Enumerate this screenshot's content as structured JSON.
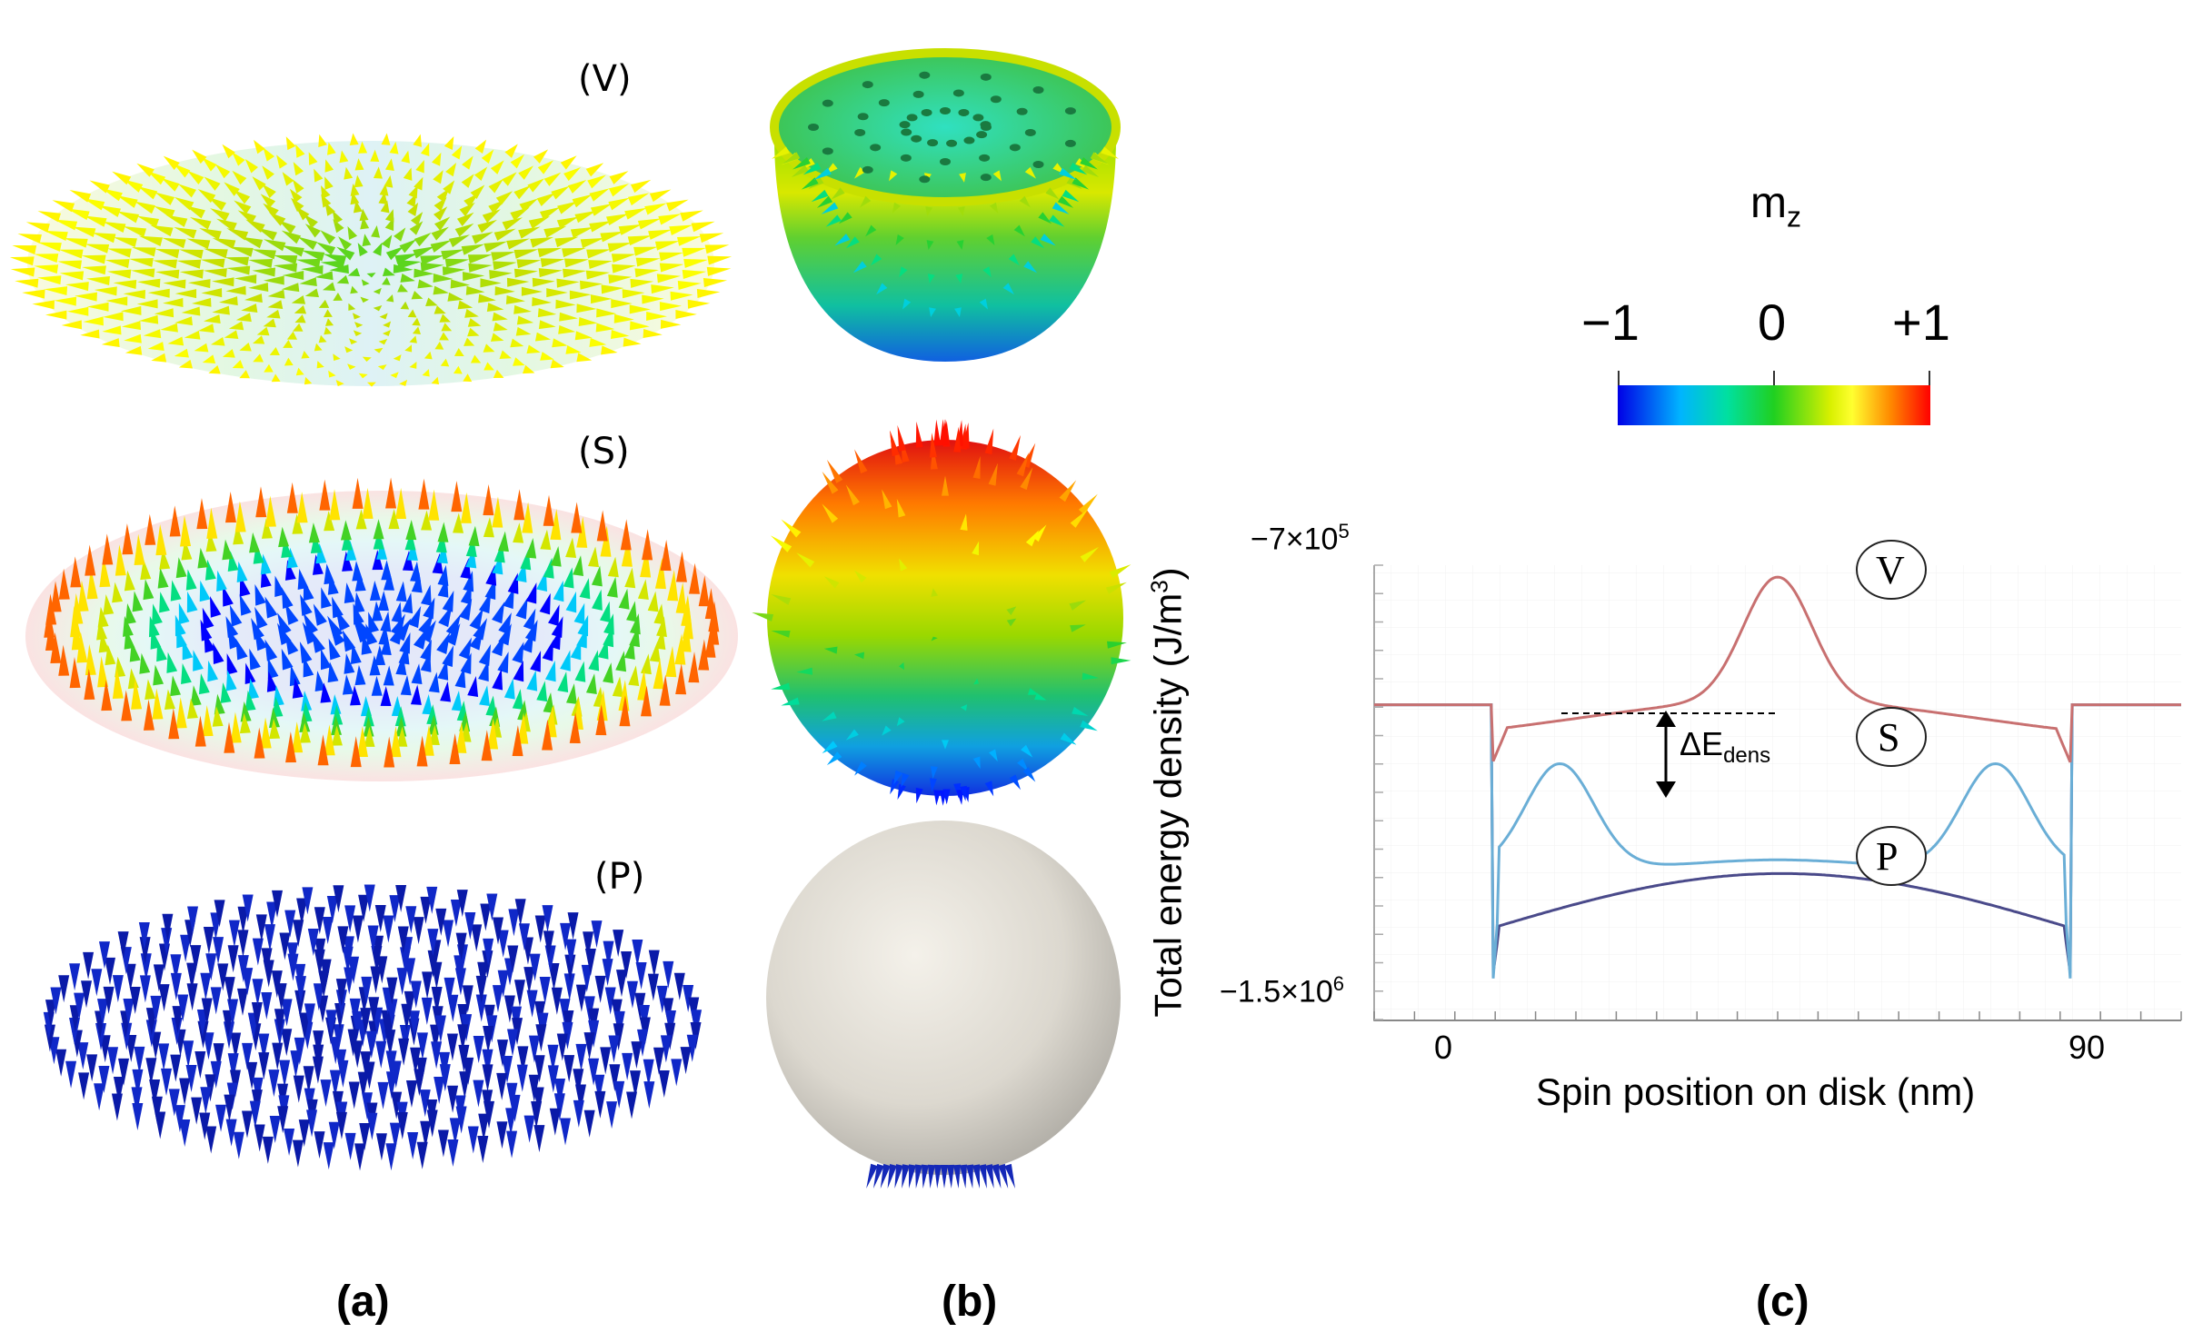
{
  "panels": {
    "a": "(a)",
    "b": "(b)",
    "c": "(c)"
  },
  "states": {
    "V": "(V)",
    "S": "(S)",
    "P": "(P)"
  },
  "colorbar": {
    "title_main": "m",
    "title_sub": "z",
    "ticks": [
      "−1",
      "0",
      "+1"
    ],
    "colors": [
      "#0000ff",
      "#00c8ff",
      "#00e08a",
      "#2bd02b",
      "#c8e000",
      "#ffff00",
      "#ff9000",
      "#ff0000"
    ]
  },
  "chart_data": {
    "type": "line",
    "xlabel": "Spin position on disk (nm)",
    "ylabel_main": "Total energy density (J/m",
    "ylabel_sup": "3",
    "ylabel_end": ")",
    "x_ticks": [
      "0",
      "90"
    ],
    "y_ticks": [
      {
        "base": "−7×10",
        "exp": "5"
      },
      {
        "base": "−1.5×10",
        "exp": "6"
      }
    ],
    "series_labels": [
      "V",
      "S",
      "P"
    ],
    "annotation": {
      "main": "ΔE",
      "sub": "dens"
    },
    "series_colors": {
      "V": "#c87070",
      "S": "#6aaed6",
      "P": "#4a4a8a"
    }
  }
}
